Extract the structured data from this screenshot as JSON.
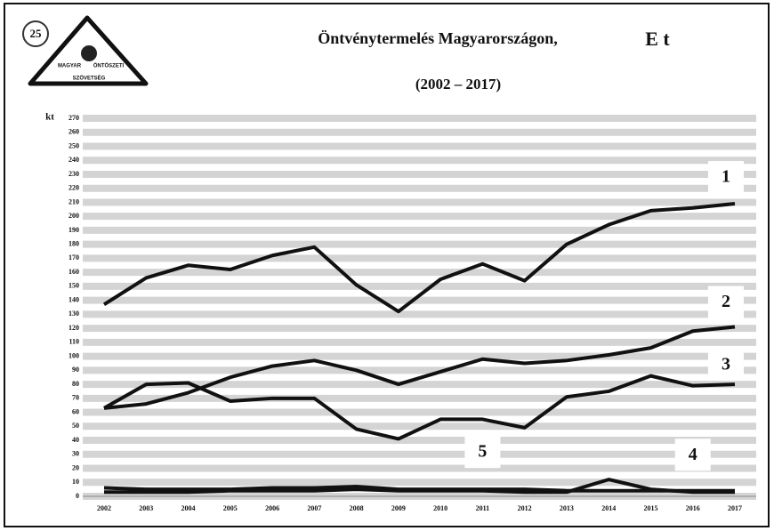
{
  "logo": {
    "badge": "25",
    "lines": [
      "MAGYAR",
      "ÖNTÖSZETI",
      "SZÖVETSÉG"
    ]
  },
  "chart_data": {
    "type": "line",
    "title": "Öntvénytermelés  Magyarországon,",
    "title_unit": "E t",
    "subtitle": "(2002 – 2017)",
    "y_label": "kt",
    "categories": [
      "2002",
      "2003",
      "2004",
      "2005",
      "2006",
      "2007",
      "2008",
      "2009",
      "2010",
      "2011",
      "2012",
      "2013",
      "2014",
      "2015",
      "2016",
      "2017"
    ],
    "series": [
      {
        "name": "1",
        "color": "#111111",
        "values": [
          137,
          156,
          165,
          162,
          172,
          178,
          151,
          132,
          155,
          166,
          154,
          180,
          194,
          204,
          206,
          209
        ]
      },
      {
        "name": "2",
        "color": "#111111",
        "values": [
          63,
          66,
          74,
          85,
          93,
          97,
          90,
          80,
          89,
          98,
          95,
          97,
          101,
          106,
          118,
          121
        ]
      },
      {
        "name": "3",
        "color": "#111111",
        "values": [
          63,
          80,
          81,
          68,
          70,
          70,
          48,
          41,
          55,
          55,
          49,
          71,
          75,
          86,
          79,
          80
        ]
      },
      {
        "name": "4",
        "color": "#111111",
        "values": [
          3,
          3,
          3,
          4,
          4,
          4,
          5,
          4,
          4,
          4,
          3,
          3,
          12,
          5,
          3,
          3
        ]
      },
      {
        "name": "5",
        "color": "#111111",
        "values": [
          6,
          5,
          5,
          5,
          6,
          6,
          7,
          5,
          5,
          5,
          5,
          4,
          4,
          4,
          4,
          4
        ]
      }
    ],
    "ylim": [
      0,
      270
    ],
    "yticks": [
      0,
      10,
      20,
      30,
      40,
      50,
      60,
      70,
      80,
      90,
      100,
      110,
      120,
      130,
      140,
      150,
      160,
      170,
      180,
      190,
      200,
      210,
      220,
      230,
      240,
      250,
      260,
      270
    ],
    "grid": true
  }
}
